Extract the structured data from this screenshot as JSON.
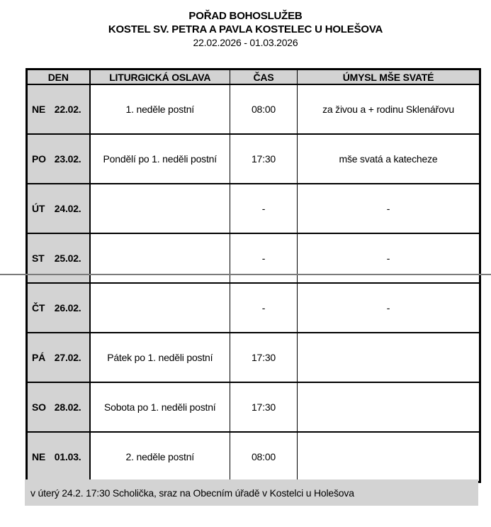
{
  "header": {
    "title_line1": "POŘAD BOHOSLUŽEB",
    "title_line2": "KOSTEL SV. PETRA A PAVLA KOSTELEC U HOLEŠOVA",
    "date_range": "22.02.2026 - 01.03.2026"
  },
  "table": {
    "headers": [
      "DEN",
      "LITURGICKÁ OSLAVA",
      "ČAS",
      "ÚMYSL MŠE SVATÉ"
    ],
    "rows": [
      {
        "day_abbr": "NE",
        "day_date": "22.02.",
        "liturgy": "1. neděle postní",
        "time": "08:00",
        "intention": "za živou a + rodinu Sklenářovu"
      },
      {
        "day_abbr": "PO",
        "day_date": "23.02.",
        "liturgy": "Pondělí po 1. neděli postní",
        "time": "17:30",
        "intention": "mše svatá a katecheze"
      },
      {
        "day_abbr": "ÚT",
        "day_date": "24.02.",
        "liturgy": "",
        "time": "-",
        "intention": "-"
      },
      {
        "day_abbr": "ST",
        "day_date": "25.02.",
        "liturgy": "",
        "time": "-",
        "intention": "-"
      },
      {
        "day_abbr": "ČT",
        "day_date": "26.02.",
        "liturgy": "",
        "time": "-",
        "intention": "-"
      },
      {
        "day_abbr": "PÁ",
        "day_date": "27.02.",
        "liturgy": "Pátek po 1. neděli postní",
        "time": "17:30",
        "intention": ""
      },
      {
        "day_abbr": "SO",
        "day_date": "28.02.",
        "liturgy": "Sobota po 1. neděli postní",
        "time": "17:30",
        "intention": ""
      },
      {
        "day_abbr": "NE",
        "day_date": "01.03.",
        "liturgy": "2. neděle postní",
        "time": "08:00",
        "intention": ""
      }
    ]
  },
  "footer": {
    "note": "v úterý 24.2. 17:30 Scholička, sraz na Obecním úřadě v Kostelci u Holešova"
  },
  "colors": {
    "cell_gray": "#d3d3d3",
    "border_black": "#000000",
    "page_break_gray": "#7a7a7a"
  }
}
